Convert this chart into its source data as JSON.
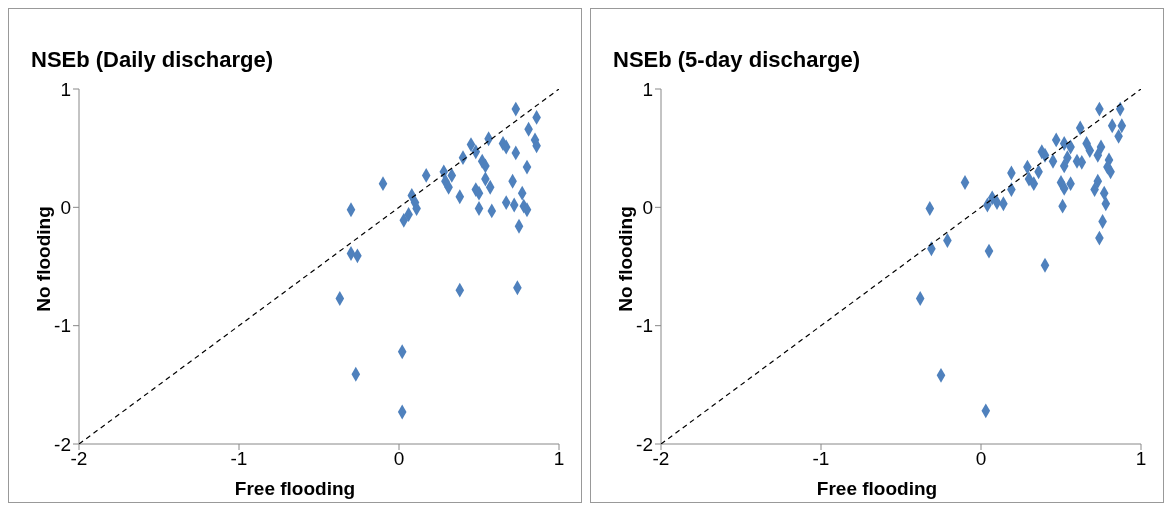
{
  "chart_data": [
    {
      "type": "scatter",
      "title": "NSEb (Daily discharge)",
      "xlabel": "Free flooding",
      "ylabel": "No flooding",
      "xlim": [
        -2,
        1
      ],
      "xticks": [
        -2,
        -1,
        0,
        1
      ],
      "ylim": [
        -2,
        1
      ],
      "yticks": [
        -2,
        -1,
        0,
        1
      ],
      "grid": false,
      "marker": "diamond",
      "series": [
        {
          "color": "#4f81bd",
          "x": [
            -0.3,
            -0.1,
            0.73,
            0.86,
            0.81,
            0.85,
            0.86,
            0.56,
            0.65,
            0.67,
            0.73,
            0.45,
            0.48,
            0.4,
            0.52,
            0.54,
            0.8,
            0.17,
            0.28,
            0.33,
            0.29,
            0.31,
            0.38,
            0.54,
            0.57,
            0.71,
            0.48,
            0.5,
            0.77,
            0.67,
            0.72,
            0.78,
            0.8,
            0.5,
            0.58,
            0.75,
            0.08,
            0.1,
            0.11,
            0.06,
            0.03,
            -0.3,
            -0.26,
            -0.37,
            0.38,
            0.74,
            0.02,
            -0.27,
            0.02
          ],
          "values": [
            -0.02,
            0.2,
            0.83,
            0.76,
            0.66,
            0.57,
            0.52,
            0.58,
            0.54,
            0.51,
            0.46,
            0.53,
            0.47,
            0.42,
            0.39,
            0.35,
            0.34,
            0.27,
            0.3,
            0.27,
            0.22,
            0.17,
            0.09,
            0.24,
            0.17,
            0.22,
            0.15,
            0.12,
            0.12,
            0.04,
            0.02,
            0.01,
            -0.02,
            -0.01,
            -0.03,
            -0.16,
            0.1,
            0.04,
            -0.01,
            -0.06,
            -0.11,
            -0.39,
            -0.41,
            -0.77,
            -0.7,
            -0.68,
            -1.22,
            -1.41,
            -1.73
          ]
        },
        {
          "type": "line",
          "color": "#000000",
          "line_style": "dashed",
          "marker": "none",
          "x": [
            -2,
            1
          ],
          "values": [
            -2,
            1
          ]
        }
      ]
    },
    {
      "type": "scatter",
      "title": "NSEb (5-day discharge)",
      "xlabel": "Free flooding",
      "ylabel": "No flooding",
      "xlim": [
        -2,
        1
      ],
      "xticks": [
        -2,
        -1,
        0,
        1
      ],
      "ylim": [
        -2,
        1
      ],
      "yticks": [
        -2,
        -1,
        0,
        1
      ],
      "grid": false,
      "marker": "diamond",
      "series": [
        {
          "color": "#4f81bd",
          "x": [
            -0.32,
            -0.1,
            0.74,
            0.87,
            0.82,
            0.88,
            0.86,
            0.62,
            0.47,
            0.52,
            0.56,
            0.66,
            0.68,
            0.75,
            0.73,
            0.8,
            0.79,
            0.81,
            0.38,
            0.4,
            0.45,
            0.54,
            0.6,
            0.63,
            0.52,
            0.29,
            0.36,
            0.19,
            0.3,
            0.33,
            0.19,
            0.5,
            0.56,
            0.52,
            0.73,
            0.71,
            0.77,
            0.78,
            0.51,
            0.07,
            0.1,
            0.14,
            0.04,
            0.76,
            0.74,
            -0.21,
            -0.31,
            0.05,
            0.4,
            -0.38,
            -0.25,
            0.03
          ],
          "values": [
            -0.01,
            0.21,
            0.83,
            0.83,
            0.69,
            0.69,
            0.6,
            0.67,
            0.57,
            0.54,
            0.51,
            0.54,
            0.48,
            0.51,
            0.44,
            0.4,
            0.34,
            0.3,
            0.47,
            0.44,
            0.39,
            0.42,
            0.39,
            0.38,
            0.35,
            0.34,
            0.3,
            0.29,
            0.24,
            0.2,
            0.15,
            0.21,
            0.2,
            0.16,
            0.22,
            0.15,
            0.12,
            0.03,
            0.01,
            0.08,
            0.04,
            0.03,
            0.02,
            -0.12,
            -0.26,
            -0.28,
            -0.35,
            -0.37,
            -0.49,
            -0.77,
            -1.42,
            -1.72
          ]
        },
        {
          "type": "line",
          "color": "#000000",
          "line_style": "dashed",
          "marker": "none",
          "x": [
            -2,
            1
          ],
          "values": [
            -2,
            1
          ]
        }
      ]
    }
  ]
}
